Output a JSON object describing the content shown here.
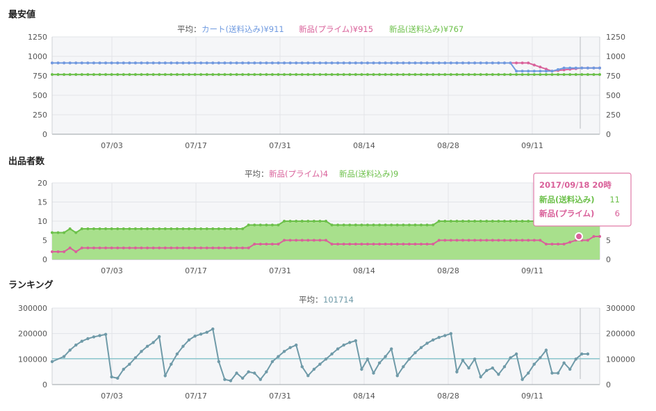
{
  "colors": {
    "cart": "#6f9ae0",
    "prime": "#d9619a",
    "shipping": "#6cc04a",
    "rank": "#6f9aa8",
    "avgline": "#8ec8cf",
    "title": "#222222",
    "muted": "#555555"
  },
  "chart_data": [
    {
      "type": "line",
      "title": "最安値",
      "legend_label": "平均：",
      "legend": [
        {
          "name": "カート(送料込み)",
          "avg": "¥911",
          "color": "#6f9ae0"
        },
        {
          "name": "新品(プライム)",
          "avg": "¥915",
          "color": "#d9619a"
        },
        {
          "name": "新品(送料込み)",
          "avg": "¥767",
          "color": "#6cc04a"
        }
      ],
      "x_ticks": [
        "07/03",
        "07/17",
        "07/31",
        "08/14",
        "08/28",
        "09/11"
      ],
      "y_ticks": [
        "0",
        "250",
        "500",
        "750",
        "1000",
        "1250"
      ],
      "y_ticks_right": [
        "0",
        "250",
        "500",
        "750",
        "1000",
        "1250"
      ],
      "ylim": [
        0,
        1250
      ],
      "series": [
        {
          "name": "新品(送料込み)",
          "color": "#6cc04a",
          "points": [
            [
              0,
              767
            ],
            [
              92,
              767
            ]
          ]
        },
        {
          "name": "新品(プライム)",
          "color": "#d9619a",
          "points": [
            [
              0,
              915
            ],
            [
              76,
              915
            ],
            [
              80,
              915
            ],
            [
              84,
              810
            ],
            [
              89,
              850
            ],
            [
              92,
              850
            ]
          ]
        },
        {
          "name": "カート(送料込み)",
          "color": "#6f9ae0",
          "points": [
            [
              0,
              915
            ],
            [
              77,
              915
            ],
            [
              78,
              810
            ],
            [
              84,
              810
            ],
            [
              86,
              850
            ],
            [
              92,
              850
            ]
          ]
        }
      ]
    },
    {
      "type": "area",
      "title": "出品者数",
      "legend_label": "平均：",
      "legend": [
        {
          "name": "新品(プライム)",
          "avg": "4",
          "color": "#d9619a"
        },
        {
          "name": "新品(送料込み)",
          "avg": "9",
          "color": "#6cc04a"
        }
      ],
      "x_ticks": [
        "07/03",
        "07/17",
        "07/31",
        "08/14",
        "08/28",
        "09/11"
      ],
      "y_ticks": [
        "0",
        "5",
        "10",
        "15",
        "20"
      ],
      "y_ticks_right": [
        "0",
        "5",
        "10",
        "15",
        "20"
      ],
      "ylim": [
        0,
        20
      ],
      "series": [
        {
          "name": "新品(送料込み)",
          "color": "#6cc04a",
          "points": [
            [
              0,
              7
            ],
            [
              2,
              7
            ],
            [
              3,
              8
            ],
            [
              4,
              7
            ],
            [
              5,
              8
            ],
            [
              32,
              8
            ],
            [
              33,
              9
            ],
            [
              38,
              9
            ],
            [
              39,
              10
            ],
            [
              46,
              10
            ],
            [
              47,
              9
            ],
            [
              64,
              9
            ],
            [
              65,
              10
            ],
            [
              82,
              10
            ],
            [
              83,
              9
            ],
            [
              90,
              9
            ],
            [
              91,
              10
            ],
            [
              92,
              10
            ]
          ]
        },
        {
          "name": "新品(プライム)",
          "color": "#d9619a",
          "points": [
            [
              0,
              2
            ],
            [
              2,
              2
            ],
            [
              3,
              3
            ],
            [
              4,
              2
            ],
            [
              5,
              3
            ],
            [
              33,
              3
            ],
            [
              34,
              4
            ],
            [
              38,
              4
            ],
            [
              39,
              5
            ],
            [
              46,
              5
            ],
            [
              47,
              4
            ],
            [
              64,
              4
            ],
            [
              65,
              5
            ],
            [
              82,
              5
            ],
            [
              83,
              4
            ],
            [
              86,
              4
            ],
            [
              88,
              5
            ],
            [
              90,
              5
            ],
            [
              91,
              6
            ],
            [
              92,
              6
            ]
          ]
        }
      ],
      "tooltip": {
        "title": "2017/09/18 20時",
        "rows": [
          {
            "label": "新品(送料込み)",
            "value": "11",
            "color": "#6cc04a"
          },
          {
            "label": "新品(プライム)",
            "value": "6",
            "color": "#d9619a"
          }
        ]
      }
    },
    {
      "type": "line",
      "title": "ランキング",
      "legend_label": "平均：",
      "legend": [
        {
          "name": "",
          "avg": "101714",
          "color": "#6f9aa8"
        }
      ],
      "average": 101714,
      "x_ticks": [
        "07/03",
        "07/17",
        "07/31",
        "08/14",
        "08/28",
        "09/11"
      ],
      "y_ticks": [
        "0",
        "100000",
        "200000",
        "300000"
      ],
      "y_ticks_right": [
        "0",
        "100000",
        "200000",
        "300000"
      ],
      "ylim": [
        0,
        300000
      ],
      "series": [
        {
          "name": "ランキング",
          "color": "#6f9aa8",
          "points": [
            [
              0,
              90000
            ],
            [
              2,
              110000
            ],
            [
              3,
              135000
            ],
            [
              4,
              155000
            ],
            [
              5,
              170000
            ],
            [
              6,
              180000
            ],
            [
              7,
              187000
            ],
            [
              8,
              192000
            ],
            [
              9,
              197000
            ],
            [
              10,
              30000
            ],
            [
              11,
              25000
            ],
            [
              12,
              60000
            ],
            [
              13,
              80000
            ],
            [
              14,
              105000
            ],
            [
              15,
              130000
            ],
            [
              16,
              150000
            ],
            [
              17,
              165000
            ],
            [
              18,
              188000
            ],
            [
              19,
              35000
            ],
            [
              20,
              80000
            ],
            [
              21,
              120000
            ],
            [
              22,
              150000
            ],
            [
              23,
              175000
            ],
            [
              24,
              190000
            ],
            [
              25,
              198000
            ],
            [
              26,
              205000
            ],
            [
              27,
              218000
            ],
            [
              28,
              90000
            ],
            [
              29,
              20000
            ],
            [
              30,
              15000
            ],
            [
              31,
              45000
            ],
            [
              32,
              25000
            ],
            [
              33,
              50000
            ],
            [
              34,
              45000
            ],
            [
              35,
              20000
            ],
            [
              36,
              50000
            ],
            [
              37,
              90000
            ],
            [
              38,
              110000
            ],
            [
              39,
              130000
            ],
            [
              40,
              145000
            ],
            [
              41,
              155000
            ],
            [
              42,
              70000
            ],
            [
              43,
              35000
            ],
            [
              44,
              60000
            ],
            [
              45,
              80000
            ],
            [
              46,
              100000
            ],
            [
              47,
              120000
            ],
            [
              48,
              140000
            ],
            [
              49,
              155000
            ],
            [
              50,
              165000
            ],
            [
              51,
              172000
            ],
            [
              52,
              60000
            ],
            [
              53,
              100000
            ],
            [
              54,
              45000
            ],
            [
              55,
              85000
            ],
            [
              56,
              110000
            ],
            [
              57,
              140000
            ],
            [
              58,
              35000
            ],
            [
              59,
              70000
            ],
            [
              60,
              100000
            ],
            [
              61,
              125000
            ],
            [
              62,
              145000
            ],
            [
              63,
              162000
            ],
            [
              64,
              175000
            ],
            [
              65,
              185000
            ],
            [
              66,
              192000
            ],
            [
              67,
              200000
            ],
            [
              68,
              50000
            ],
            [
              69,
              95000
            ],
            [
              70,
              65000
            ],
            [
              71,
              100000
            ],
            [
              72,
              30000
            ],
            [
              73,
              55000
            ],
            [
              74,
              65000
            ],
            [
              75,
              40000
            ],
            [
              76,
              70000
            ],
            [
              77,
              105000
            ],
            [
              78,
              120000
            ],
            [
              79,
              20000
            ],
            [
              80,
              45000
            ],
            [
              81,
              80000
            ],
            [
              82,
              105000
            ],
            [
              83,
              135000
            ],
            [
              84,
              45000
            ],
            [
              85,
              45000
            ],
            [
              86,
              85000
            ],
            [
              87,
              60000
            ],
            [
              88,
              100000
            ],
            [
              89,
              120000
            ],
            [
              90,
              120000
            ]
          ]
        }
      ]
    }
  ]
}
